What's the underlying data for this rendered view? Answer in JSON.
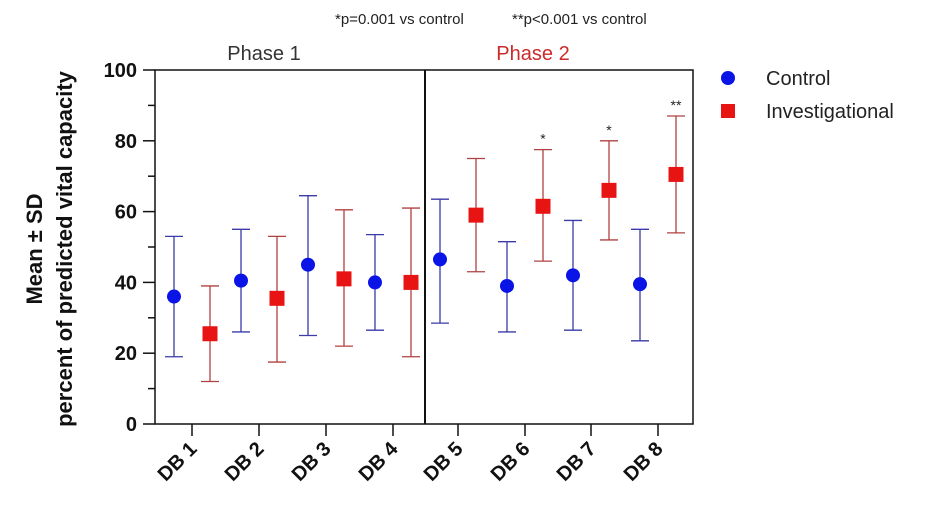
{
  "chart_data": {
    "type": "scatter",
    "subtype": "errorbar",
    "notes": [
      "*p=0.001 vs control",
      "**p<0.001 vs control"
    ],
    "phases": [
      {
        "label": "Phase 1",
        "color": "#333333",
        "categories": [
          "DB 1",
          "DB 2",
          "DB 3",
          "DB 4"
        ]
      },
      {
        "label": "Phase 2",
        "color": "#cc2a2a",
        "categories": [
          "DB 5",
          "DB 6",
          "DB 7",
          "DB 8"
        ]
      }
    ],
    "categories": [
      "DB 1",
      "DB 2",
      "DB 3",
      "DB 4",
      "DB 5",
      "DB 6",
      "DB 7",
      "DB 8"
    ],
    "ylabel_line1": "Mean ± SD",
    "ylabel_line2": "percent of predicted vital capacity",
    "ylim": [
      0,
      100
    ],
    "yticks": [
      0,
      20,
      40,
      60,
      80,
      100
    ],
    "series": [
      {
        "name": "Control",
        "marker": "circle",
        "color": "#0a14e6",
        "error_color": "#3a3aa8",
        "values": [
          36,
          40.5,
          45,
          40,
          46.5,
          39,
          42,
          39.5
        ],
        "lower": [
          19,
          26,
          25,
          26.5,
          28.5,
          26,
          26.5,
          23.5
        ],
        "upper": [
          53,
          55,
          64.5,
          53.5,
          63.5,
          51.5,
          57.5,
          55
        ]
      },
      {
        "name": "Investigational",
        "marker": "square",
        "color": "#e81414",
        "error_color": "#b04040",
        "values": [
          25.5,
          35.5,
          41,
          40,
          59,
          61.5,
          66,
          70.5
        ],
        "lower": [
          12,
          17.5,
          22,
          19,
          43,
          46,
          52,
          54
        ],
        "upper": [
          39,
          53,
          60.5,
          61,
          75,
          77.5,
          80,
          87
        ],
        "significance": [
          "",
          "",
          "",
          "",
          "",
          "*",
          "*",
          "**"
        ]
      }
    ],
    "legend_position": "right",
    "grid": false
  }
}
